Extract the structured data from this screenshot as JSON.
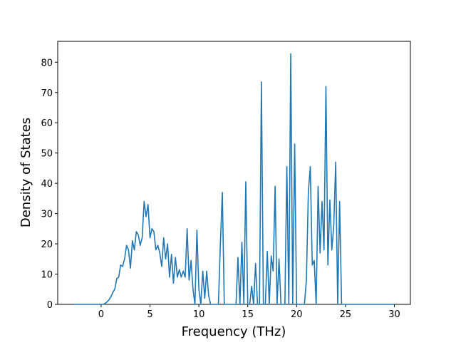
{
  "chart_data": {
    "type": "line",
    "x_label": "Frequency (THz)",
    "y_label": "Density of States",
    "xlim": [
      -4.44,
      31.64
    ],
    "ylim": [
      0,
      86.9
    ],
    "xticks": [
      0,
      5,
      10,
      15,
      20,
      25,
      30
    ],
    "yticks": [
      0,
      10,
      20,
      30,
      40,
      50,
      60,
      70,
      80
    ],
    "grid": false,
    "series": [
      {
        "name": "Density of States",
        "color": "#1f77b4",
        "x": [
          -2.8,
          0,
          0.2,
          0.4,
          0.6,
          0.8,
          1.0,
          1.2,
          1.4,
          1.6,
          1.8,
          2.0,
          2.2,
          2.4,
          2.6,
          2.8,
          3.0,
          3.2,
          3.4,
          3.6,
          3.8,
          4.0,
          4.2,
          4.4,
          4.6,
          4.8,
          5.0,
          5.2,
          5.4,
          5.6,
          5.8,
          6.0,
          6.2,
          6.4,
          6.6,
          6.8,
          7.0,
          7.2,
          7.4,
          7.6,
          7.8,
          8.0,
          8.2,
          8.4,
          8.6,
          8.8,
          9.0,
          9.2,
          9.4,
          9.6,
          9.8,
          10.0,
          10.2,
          10.4,
          10.6,
          10.8,
          11.0,
          11.2,
          11.4,
          11.6,
          11.8,
          12.0,
          12.2,
          12.4,
          12.6,
          12.8,
          13.0,
          13.2,
          13.4,
          13.6,
          13.8,
          14.0,
          14.2,
          14.4,
          14.6,
          14.8,
          15.0,
          15.2,
          15.4,
          15.6,
          15.8,
          16.0,
          16.2,
          16.4,
          16.6,
          16.8,
          17.0,
          17.2,
          17.4,
          17.6,
          17.8,
          18.0,
          18.2,
          18.4,
          18.6,
          18.8,
          19.0,
          19.2,
          19.4,
          19.6,
          19.8,
          20.0,
          20.2,
          20.4,
          20.6,
          20.8,
          21.0,
          21.2,
          21.4,
          21.6,
          21.8,
          22.0,
          22.2,
          22.4,
          22.6,
          22.8,
          23.0,
          23.2,
          23.4,
          23.6,
          23.8,
          24.0,
          24.2,
          24.4,
          24.6,
          30
        ],
        "values": [
          0,
          0,
          0,
          0.3,
          0.8,
          1.5,
          2.5,
          4,
          5,
          8.5,
          9,
          13,
          12.5,
          15,
          19.5,
          18,
          12,
          21,
          18,
          24,
          23,
          19.5,
          22,
          34,
          29,
          33,
          22,
          25,
          24,
          18,
          19.5,
          17,
          12.5,
          22,
          15,
          20,
          9,
          16.5,
          7,
          15.5,
          9,
          11.5,
          9,
          11,
          9,
          25,
          8,
          14.5,
          5,
          0,
          24.5,
          5,
          0,
          11,
          2,
          11,
          3,
          0,
          0,
          0,
          0,
          0,
          20,
          37,
          0,
          0,
          0,
          0,
          0,
          0,
          0,
          15.5,
          0,
          20.5,
          0,
          40.5,
          0,
          0,
          6,
          0,
          13.5,
          0,
          0,
          73.5,
          0,
          0,
          17.5,
          0,
          16,
          11,
          39,
          0,
          15,
          0,
          0,
          0,
          45.5,
          0,
          82.8,
          0,
          53,
          0,
          0,
          0,
          0,
          0,
          8,
          37,
          45.5,
          13,
          14.5,
          0,
          39,
          17,
          34,
          18,
          72,
          13,
          34.5,
          18,
          26,
          47,
          0,
          34,
          0,
          0
        ]
      }
    ]
  }
}
